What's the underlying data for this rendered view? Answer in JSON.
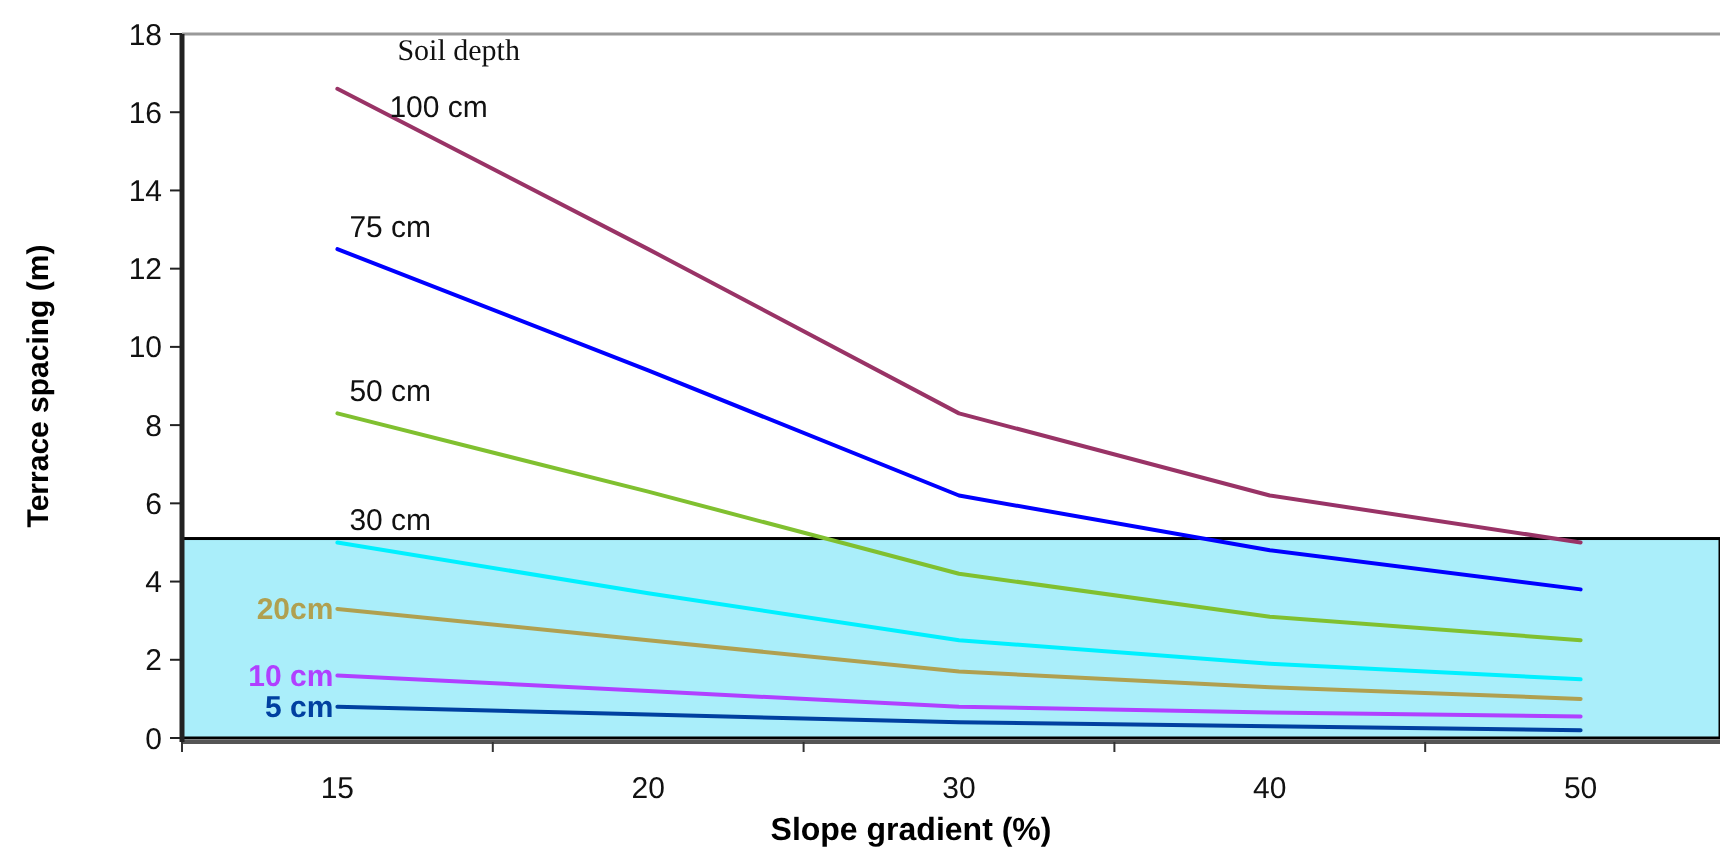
{
  "chart_data": {
    "type": "line",
    "xlabel": "Slope gradient (%)",
    "ylabel": "Terrace spacing (m)",
    "legend_title": "Soil depth",
    "categories": [
      "15",
      "20",
      "30",
      "40",
      "50"
    ],
    "series": [
      {
        "name": "100 cm",
        "color": "#993366",
        "values": [
          16.6,
          12.5,
          8.3,
          6.2,
          5.0
        ]
      },
      {
        "name": "75 cm",
        "color": "#0000ff",
        "values": [
          12.5,
          9.4,
          6.2,
          4.8,
          3.8
        ]
      },
      {
        "name": "50 cm",
        "color": "#80c030",
        "values": [
          8.3,
          6.3,
          4.2,
          3.1,
          2.5
        ]
      },
      {
        "name": "30 cm",
        "color": "#00f0ff",
        "values": [
          5.0,
          3.7,
          2.5,
          1.9,
          1.5
        ]
      },
      {
        "name": "20cm",
        "color": "#b0a050",
        "values": [
          3.3,
          2.5,
          1.7,
          1.3,
          1.0
        ]
      },
      {
        "name": "10 cm",
        "color": "#b040ff",
        "values": [
          1.6,
          1.2,
          0.8,
          0.65,
          0.55
        ]
      },
      {
        "name": "5 cm",
        "color": "#0040a0",
        "values": [
          0.8,
          0.6,
          0.4,
          0.3,
          0.2
        ]
      }
    ],
    "bands": [
      {
        "axis": "y",
        "from": 0,
        "to": 5.1,
        "color": "#aaeefa"
      }
    ],
    "ylim": [
      0,
      18
    ],
    "yticks": [
      0,
      2,
      4,
      6,
      8,
      10,
      12,
      14,
      16,
      18
    ],
    "grid": false,
    "line_style": "solid",
    "marker": "none"
  }
}
